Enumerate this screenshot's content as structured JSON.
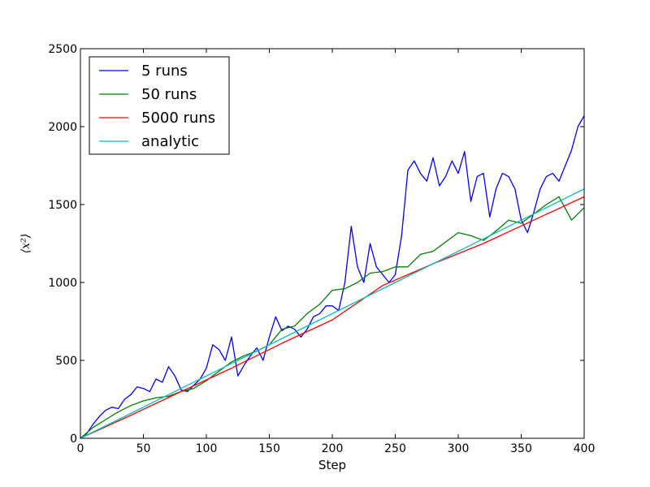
{
  "chart_data": {
    "type": "line",
    "title": "",
    "xlabel": "Step",
    "ylabel": "⟨x²⟩",
    "xlim": [
      0,
      400
    ],
    "ylim": [
      0,
      2500
    ],
    "xticks": [
      0,
      50,
      100,
      150,
      200,
      250,
      300,
      350,
      400
    ],
    "yticks": [
      0,
      500,
      1000,
      1500,
      2000,
      2500
    ],
    "grid": false,
    "legend_position": "top-left",
    "series": [
      {
        "name": "5 runs",
        "color": "#0000ff",
        "x": [
          0,
          5,
          10,
          15,
          20,
          25,
          30,
          35,
          40,
          45,
          50,
          55,
          60,
          65,
          70,
          75,
          80,
          85,
          90,
          95,
          100,
          105,
          110,
          115,
          120,
          125,
          130,
          135,
          140,
          145,
          150,
          155,
          160,
          165,
          170,
          175,
          180,
          185,
          190,
          195,
          200,
          205,
          210,
          215,
          220,
          225,
          230,
          235,
          240,
          245,
          250,
          255,
          260,
          265,
          270,
          275,
          280,
          285,
          290,
          295,
          300,
          305,
          310,
          315,
          320,
          325,
          330,
          335,
          340,
          345,
          350,
          355,
          360,
          365,
          370,
          375,
          380,
          385,
          390,
          395,
          400
        ],
        "y": [
          0,
          30,
          90,
          140,
          180,
          200,
          190,
          250,
          280,
          330,
          320,
          300,
          380,
          360,
          460,
          400,
          310,
          300,
          340,
          380,
          450,
          600,
          570,
          500,
          650,
          400,
          470,
          530,
          580,
          500,
          650,
          780,
          690,
          720,
          700,
          650,
          700,
          780,
          800,
          850,
          850,
          820,
          1000,
          1360,
          1100,
          1000,
          1250,
          1100,
          1050,
          1000,
          1050,
          1300,
          1720,
          1780,
          1700,
          1650,
          1800,
          1620,
          1680,
          1780,
          1700,
          1840,
          1520,
          1680,
          1700,
          1420,
          1600,
          1700,
          1680,
          1600,
          1400,
          1320,
          1450,
          1600,
          1680,
          1700,
          1650,
          1750,
          1850,
          2000,
          2070
        ]
      },
      {
        "name": "50 runs",
        "color": "#007f00",
        "x": [
          0,
          10,
          20,
          30,
          40,
          50,
          60,
          70,
          80,
          90,
          100,
          110,
          120,
          130,
          140,
          150,
          160,
          170,
          180,
          190,
          200,
          210,
          220,
          230,
          240,
          250,
          260,
          270,
          280,
          290,
          300,
          310,
          320,
          330,
          340,
          350,
          360,
          370,
          380,
          390,
          400
        ],
        "y": [
          0,
          70,
          120,
          170,
          210,
          240,
          260,
          270,
          300,
          320,
          370,
          430,
          490,
          530,
          560,
          600,
          700,
          720,
          800,
          860,
          950,
          960,
          1000,
          1060,
          1070,
          1100,
          1100,
          1180,
          1200,
          1260,
          1320,
          1300,
          1270,
          1330,
          1400,
          1380,
          1440,
          1500,
          1550,
          1400,
          1480
        ]
      },
      {
        "name": "5000 runs",
        "color": "#ff0000",
        "x": [
          0,
          40,
          80,
          120,
          160,
          200,
          240,
          280,
          320,
          360,
          400
        ],
        "y": [
          0,
          148,
          300,
          450,
          610,
          760,
          980,
          1120,
          1250,
          1400,
          1550
        ]
      },
      {
        "name": "analytic",
        "color": "#00bfbf",
        "x": [
          0,
          400
        ],
        "y": [
          0,
          1600
        ]
      }
    ]
  }
}
